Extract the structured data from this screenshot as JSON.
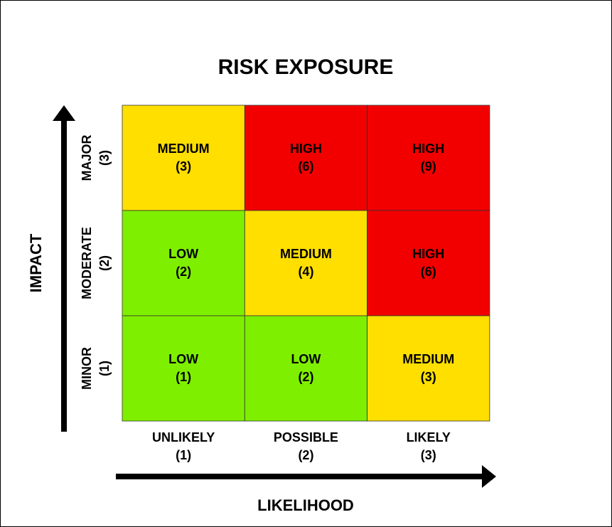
{
  "title": "RISK EXPOSURE",
  "y_axis": {
    "label": "IMPACT",
    "levels": [
      {
        "name": "MAJOR",
        "score": "(3)"
      },
      {
        "name": "MODERATE",
        "score": "(2)"
      },
      {
        "name": "MINOR",
        "score": "(1)"
      }
    ]
  },
  "x_axis": {
    "label": "LIKELIHOOD",
    "levels": [
      {
        "name": "UNLIKELY",
        "score": "(1)"
      },
      {
        "name": "POSSIBLE",
        "score": "(2)"
      },
      {
        "name": "LIKELY",
        "score": "(3)"
      }
    ]
  },
  "matrix": {
    "rows": [
      [
        {
          "label": "MEDIUM",
          "score": "(3)",
          "color": "#ffdf00",
          "text_color": "#000000"
        },
        {
          "label": "HIGH",
          "score": "(6)",
          "color": "#f20000",
          "text_color": "#ffffff"
        },
        {
          "label": "HIGH",
          "score": "(9)",
          "color": "#f20000",
          "text_color": "#ffffff"
        }
      ],
      [
        {
          "label": "LOW",
          "score": "(2)",
          "color": "#7fef00",
          "text_color": "#ffffff"
        },
        {
          "label": "MEDIUM",
          "score": "(4)",
          "color": "#ffdf00",
          "text_color": "#000000"
        },
        {
          "label": "HIGH",
          "score": "(6)",
          "color": "#f20000",
          "text_color": "#ffffff"
        }
      ],
      [
        {
          "label": "LOW",
          "score": "(1)",
          "color": "#7fef00",
          "text_color": "#ffffff"
        },
        {
          "label": "LOW",
          "score": "(2)",
          "color": "#7fef00",
          "text_color": "#ffffff"
        },
        {
          "label": "MEDIUM",
          "score": "(3)",
          "color": "#ffdf00",
          "text_color": "#000000"
        }
      ]
    ]
  }
}
